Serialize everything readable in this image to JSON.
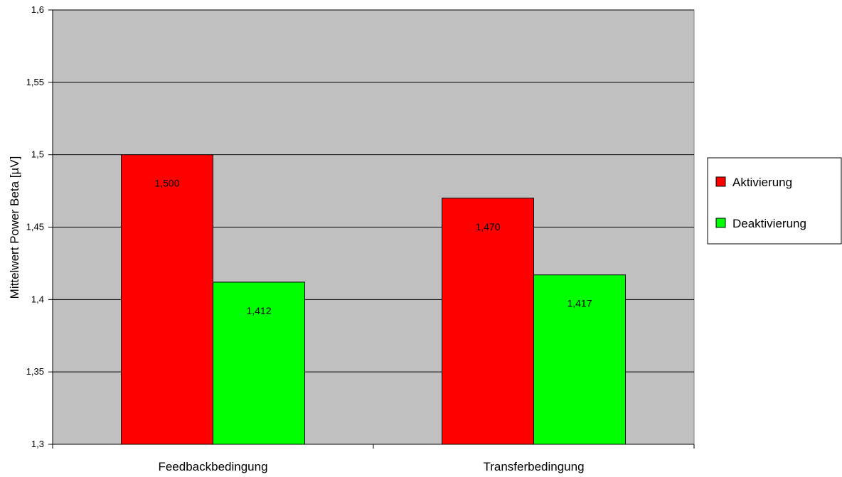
{
  "chart_data": {
    "type": "bar",
    "title": "",
    "xlabel": "",
    "ylabel": "Mittelwert Power Beta [µV]",
    "categories": [
      "Feedbackbedingung",
      "Transferbedingung"
    ],
    "series": [
      {
        "name": "Aktivierung",
        "color": "#ff0000",
        "values": [
          1.5,
          1.47
        ],
        "labels": [
          "1,500",
          "1,470"
        ]
      },
      {
        "name": "Deaktivierung",
        "color": "#00ff00",
        "values": [
          1.412,
          1.417
        ],
        "labels": [
          "1,412",
          "1,417"
        ]
      }
    ],
    "ylim": [
      1.3,
      1.6
    ],
    "yticks": [
      1.3,
      1.35,
      1.4,
      1.45,
      1.5,
      1.55,
      1.6
    ],
    "ytick_labels": [
      "1,3",
      "1,35",
      "1,4",
      "1,45",
      "1,5",
      "1,55",
      "1,6"
    ],
    "grid": true,
    "plot_background": "#c0c0c0",
    "legend_position": "right"
  }
}
